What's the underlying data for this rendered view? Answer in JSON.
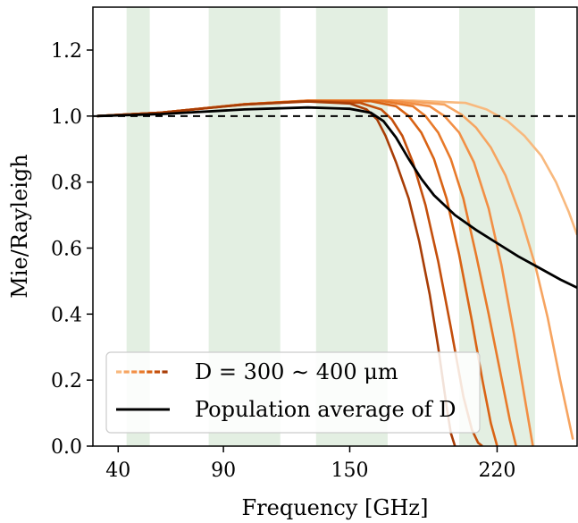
{
  "chart_data": {
    "type": "line",
    "xlabel": "Frequency [GHz]",
    "ylabel": "Mie/Rayleigh",
    "xlim": [
      28,
      258
    ],
    "ylim": [
      0.0,
      1.33
    ],
    "xticks": [
      {
        "value": 40,
        "label": "40"
      },
      {
        "value": 90,
        "label": "90"
      },
      {
        "value": 150,
        "label": "150"
      },
      {
        "value": 220,
        "label": "220"
      }
    ],
    "yticks": [
      {
        "value": 0.0,
        "label": "0.0"
      },
      {
        "value": 0.2,
        "label": "0.2"
      },
      {
        "value": 0.4,
        "label": "0.4"
      },
      {
        "value": 0.6,
        "label": "0.6"
      },
      {
        "value": 0.8,
        "label": "0.8"
      },
      {
        "value": 1.0,
        "label": "1.0"
      },
      {
        "value": 1.2,
        "label": "1.2"
      }
    ],
    "bands": [
      [
        44,
        55
      ],
      [
        83,
        117
      ],
      [
        134,
        168
      ],
      [
        202,
        238
      ]
    ],
    "band_color": "#e3efe2",
    "reference_line": {
      "y": 1.0,
      "style": "dashed",
      "color": "#000000"
    },
    "series_colors": [
      "#a83d06",
      "#c44f0c",
      "#d96314",
      "#e87a2a",
      "#f28f45",
      "#f6a460",
      "#f8b97e"
    ],
    "population_color": "#000000",
    "series": [
      {
        "x": [
          30,
          60,
          100,
          130,
          150,
          158,
          163,
          167,
          172,
          178,
          183,
          188,
          192,
          196,
          198,
          200
        ],
        "y": [
          1.0,
          1.01,
          1.035,
          1.044,
          1.038,
          1.02,
          0.99,
          0.94,
          0.86,
          0.75,
          0.62,
          0.46,
          0.3,
          0.12,
          0.04,
          0.0
        ]
      },
      {
        "x": [
          30,
          60,
          100,
          130,
          155,
          165,
          170,
          175,
          180,
          186,
          192,
          198,
          204,
          208,
          211,
          213
        ],
        "y": [
          1.0,
          1.01,
          1.035,
          1.045,
          1.04,
          1.02,
          0.99,
          0.94,
          0.86,
          0.73,
          0.56,
          0.36,
          0.15,
          0.05,
          0.01,
          0.0
        ]
      },
      {
        "x": [
          30,
          60,
          100,
          130,
          160,
          172,
          178,
          184,
          190,
          196,
          202,
          208,
          213,
          217,
          220
        ],
        "y": [
          1.0,
          1.01,
          1.036,
          1.046,
          1.045,
          1.03,
          1.0,
          0.95,
          0.87,
          0.75,
          0.58,
          0.38,
          0.2,
          0.07,
          0.0
        ]
      },
      {
        "x": [
          30,
          60,
          100,
          130,
          165,
          180,
          186,
          192,
          198,
          204,
          210,
          216,
          221,
          226,
          229
        ],
        "y": [
          1.0,
          1.01,
          1.036,
          1.046,
          1.046,
          1.03,
          1.0,
          0.95,
          0.87,
          0.75,
          0.58,
          0.4,
          0.24,
          0.08,
          0.0
        ]
      },
      {
        "x": [
          30,
          60,
          100,
          130,
          170,
          188,
          195,
          202,
          209,
          216,
          222,
          228,
          233,
          237
        ],
        "y": [
          1.0,
          1.01,
          1.036,
          1.047,
          1.047,
          1.03,
          1.0,
          0.95,
          0.86,
          0.72,
          0.55,
          0.34,
          0.15,
          0.0
        ]
      },
      {
        "x": [
          30,
          60,
          100,
          130,
          175,
          195,
          203,
          210,
          217,
          224,
          231,
          238,
          244,
          250,
          256
        ],
        "y": [
          1.0,
          1.01,
          1.036,
          1.047,
          1.047,
          1.035,
          1.005,
          0.965,
          0.905,
          0.82,
          0.7,
          0.55,
          0.39,
          0.2,
          0.02
        ]
      },
      {
        "x": [
          30,
          60,
          100,
          130,
          180,
          205,
          215,
          225,
          233,
          241,
          248,
          254,
          258
        ],
        "y": [
          1.0,
          1.01,
          1.036,
          1.047,
          1.047,
          1.04,
          1.02,
          0.985,
          0.94,
          0.88,
          0.8,
          0.71,
          0.64
        ]
      }
    ],
    "population_average": {
      "x": [
        30,
        60,
        100,
        130,
        150,
        160,
        166,
        172,
        178,
        184,
        190,
        200,
        210,
        220,
        230,
        240,
        250,
        258
      ],
      "y": [
        1.0,
        1.006,
        1.02,
        1.026,
        1.022,
        1.01,
        0.985,
        0.935,
        0.87,
        0.81,
        0.76,
        0.7,
        0.655,
        0.615,
        0.575,
        0.54,
        0.505,
        0.48
      ]
    },
    "legend": {
      "placement": "lower-left",
      "entries": [
        {
          "label": "D = 300 ∼ 400 μm",
          "style": "gradient-dashed"
        },
        {
          "label": "Population average of D",
          "style": "solid-black"
        }
      ]
    }
  }
}
